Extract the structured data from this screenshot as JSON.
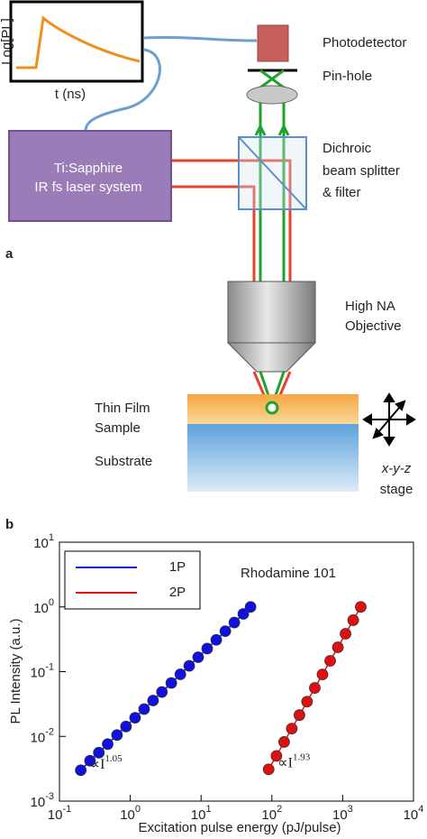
{
  "diagram": {
    "inset": {
      "y_label": "Log[PL]",
      "x_label": "t (ns)"
    },
    "photodetector": "Photodetector",
    "pinhole": "Pin-hole",
    "laser": [
      "Ti:Sapphire",
      "IR fs laser system"
    ],
    "splitter": [
      "Dichroic",
      "beam splitter",
      "& filter"
    ],
    "objective": [
      "High NA",
      "Objective"
    ],
    "sample": [
      "Thin Film",
      "Sample"
    ],
    "substrate": "Substrate",
    "stage": [
      "x-y-z",
      "stage"
    ],
    "panel_labels": [
      "a",
      "b"
    ]
  },
  "chart_data": {
    "type": "scatter",
    "subtitle": "Rhodamine 101",
    "x_label": "Excitation pulse energy (pJ/pulse)",
    "y_label": "PL Intensity (a.u.)",
    "xscale": "log",
    "yscale": "log",
    "xlim": [
      0.1,
      10000
    ],
    "ylim": [
      0.001,
      10
    ],
    "xticks": [
      {
        "value": 0.1,
        "label": "10^-1"
      },
      {
        "value": 1,
        "label": "10^0"
      },
      {
        "value": 10,
        "label": "10^1"
      },
      {
        "value": 100,
        "label": "10^2"
      },
      {
        "value": 1000,
        "label": "10^3"
      },
      {
        "value": 10000,
        "label": "10^4"
      }
    ],
    "yticks": [
      {
        "value": 0.001,
        "label": "10^-3"
      },
      {
        "value": 0.01,
        "label": "10^-2"
      },
      {
        "value": 0.1,
        "label": "10^-1"
      },
      {
        "value": 1,
        "label": "10^0"
      },
      {
        "value": 10,
        "label": "10^1"
      }
    ],
    "legend": "upper left",
    "series": [
      {
        "name": "1P",
        "color": "#1010e0",
        "x": [
          0.2,
          0.27,
          0.36,
          0.48,
          0.65,
          0.87,
          1.17,
          1.57,
          2.1,
          2.8,
          3.8,
          5.1,
          6.8,
          9.1,
          12.2,
          16.4,
          22,
          29.5,
          39.5,
          50
        ],
        "values": [
          0.003,
          0.0042,
          0.0056,
          0.0076,
          0.0105,
          0.0142,
          0.0194,
          0.0264,
          0.0358,
          0.0485,
          0.0668,
          0.091,
          0.123,
          0.167,
          0.227,
          0.31,
          0.422,
          0.574,
          0.78,
          1.0
        ]
      },
      {
        "name": "2P",
        "color": "#e01010",
        "x": [
          90,
          116,
          149,
          191,
          245,
          314,
          404,
          518,
          666,
          855,
          1097,
          1409,
          1800
        ],
        "values": [
          0.0031,
          0.005,
          0.0082,
          0.0132,
          0.0213,
          0.0344,
          0.056,
          0.0904,
          0.147,
          0.238,
          0.385,
          0.624,
          1.0
        ]
      }
    ],
    "annotations": [
      {
        "text": "∝I",
        "superscript": "1.05"
      },
      {
        "text": "∝I",
        "superscript": "1.93"
      }
    ]
  }
}
